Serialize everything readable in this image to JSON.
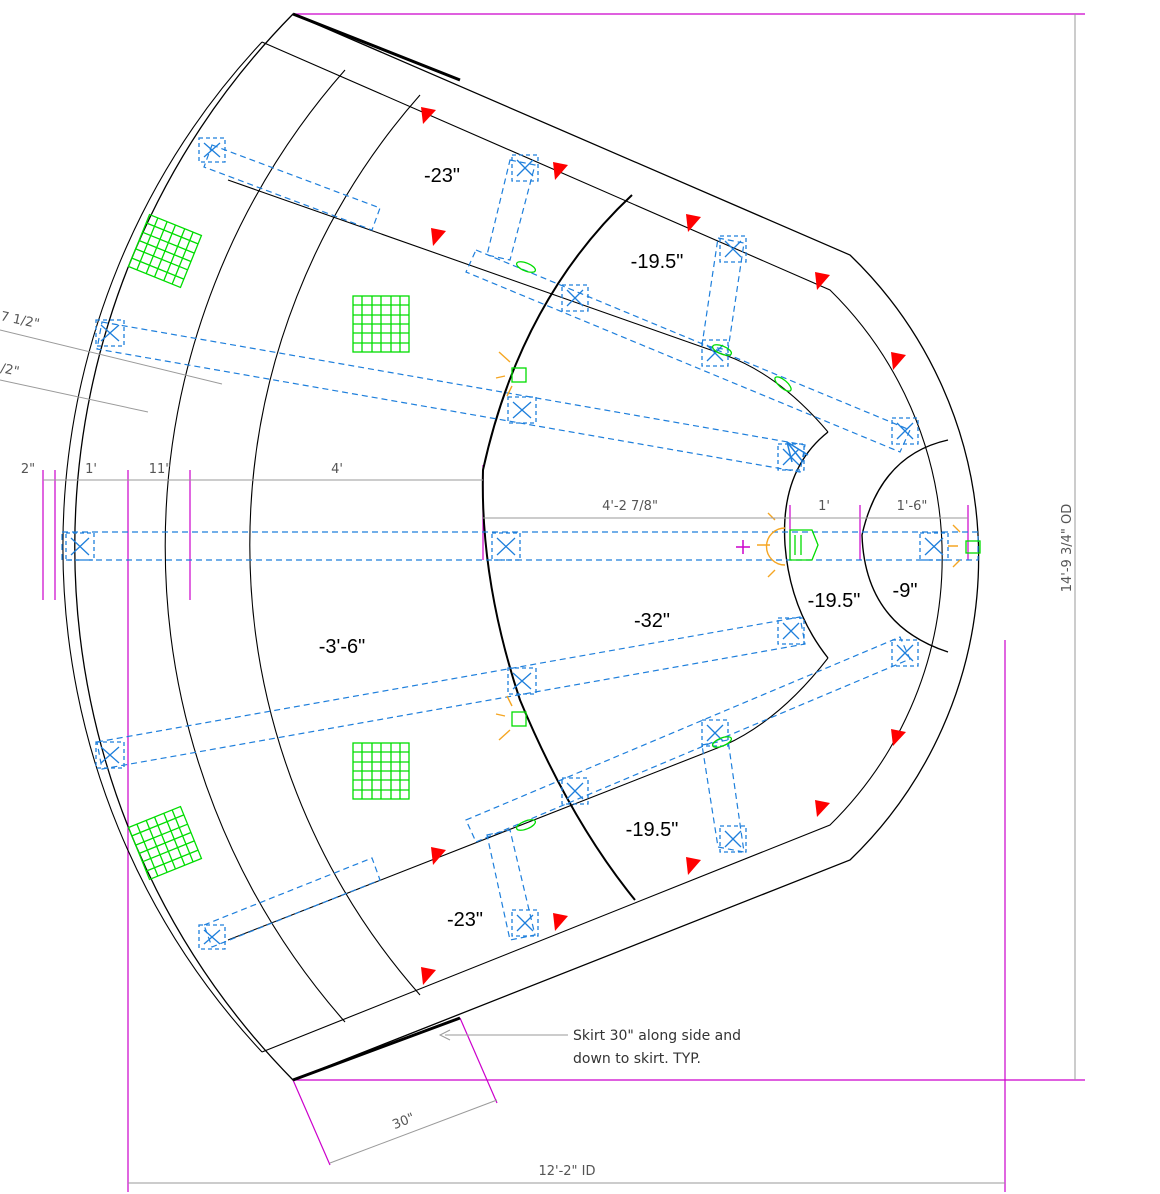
{
  "depth_labels": [
    "-23\"",
    "-19.5\"",
    "-3'-6\"",
    "-32\"",
    "-19.5\"",
    "-9\"",
    "-19.5\"",
    "-23\""
  ],
  "dimensions": {
    "partial_top_1": "7 1/2\"",
    "partial_top_2": "/2\"",
    "d_2in": "2\"",
    "d_1ft": "1'",
    "d_11in": "11\"",
    "d_4ft": "4'",
    "d_4ft_2_7_8": "4'-2 7/8\"",
    "d_1ft_b": "1'",
    "d_1ft_6": "1'-6\"",
    "od": "14'-9 3/4\" OD",
    "id": "12'-2\" ID",
    "skirt_30": "30\""
  },
  "note": {
    "line1": "Skirt 30\" along side and",
    "line2": "down to skirt. TYP."
  },
  "colors": {
    "outline": "#000000",
    "dimension_magenta": "#cc00cc",
    "plumbing_blue": "#1e7fdc",
    "jet_green": "#00dd00",
    "light_orange": "#f5a623",
    "step_red": "#ff0000",
    "dim_gray": "#9a9a9a"
  }
}
